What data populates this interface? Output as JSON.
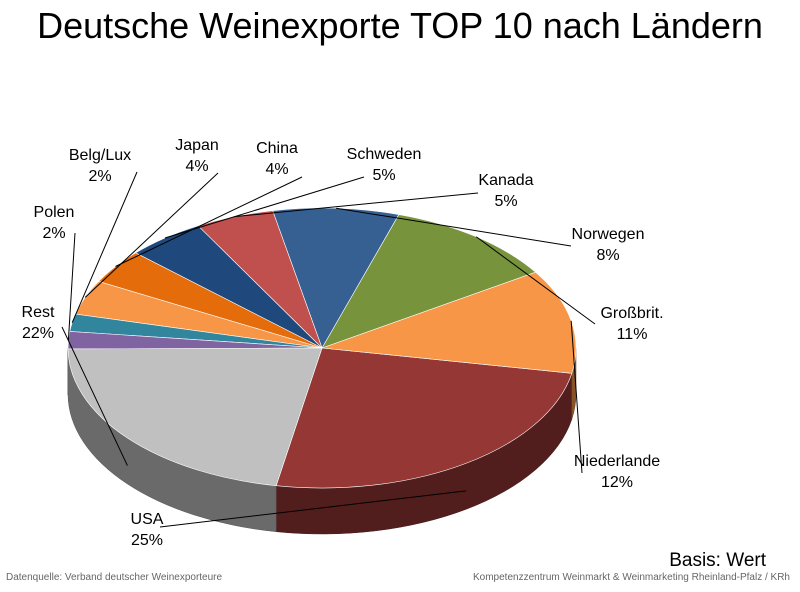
{
  "chart_data": {
    "type": "pie",
    "title": "Deutsche Weinexporte TOP 10 nach Ländern",
    "note": "Basis: Wert",
    "slices": [
      {
        "label": "USA",
        "value": 25,
        "value_label": "25%",
        "color": "#953735"
      },
      {
        "label": "Niederlande",
        "value": 12,
        "value_label": "12%",
        "color": "#f79646"
      },
      {
        "label": "Großbrit.",
        "value": 11,
        "value_label": "11%",
        "color": "#77933c"
      },
      {
        "label": "Norwegen",
        "value": 8,
        "value_label": "8%",
        "color": "#376092"
      },
      {
        "label": "Kanada",
        "value": 5,
        "value_label": "5%",
        "color": "#c0504d"
      },
      {
        "label": "Schweden",
        "value": 5,
        "value_label": "5%",
        "color": "#1f497d"
      },
      {
        "label": "China",
        "value": 4,
        "value_label": "4%",
        "color": "#e46c0a"
      },
      {
        "label": "Japan",
        "value": 4,
        "value_label": "4%",
        "color": "#f79646"
      },
      {
        "label": "Belg/Lux",
        "value": 2,
        "value_label": "2%",
        "color": "#31859c"
      },
      {
        "label": "Polen",
        "value": 2,
        "value_label": "2%",
        "color": "#8064a2"
      },
      {
        "label": "Rest",
        "value": 22,
        "value_label": "22%",
        "color": "#c0c0c0"
      }
    ]
  },
  "footer": {
    "source_left": "Datenquelle: Verband deutscher Weinexporteure",
    "source_right": "Kompetenzzentrum Weinmarkt & Weinmarketing Rheinland-Pfalz / KRh"
  }
}
